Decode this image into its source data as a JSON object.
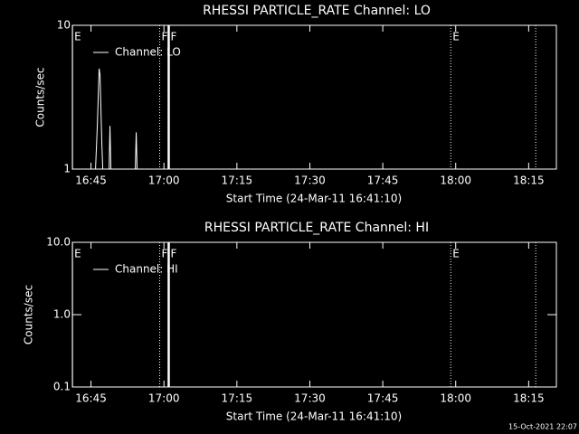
{
  "chart_data": [
    {
      "type": "line",
      "title": "RHESSI PARTICLE_RATE Channel: LO",
      "x_label": "Start Time (24-Mar-11 16:41:10)",
      "y_label": "Counts/sec",
      "log_y": true,
      "xlim": [
        41.17,
        140.7
      ],
      "ylim": [
        1,
        10
      ],
      "xticks": [
        {
          "value": 45,
          "label": "16:45"
        },
        {
          "value": 60,
          "label": "17:00"
        },
        {
          "value": 75,
          "label": "17:15"
        },
        {
          "value": 90,
          "label": "17:30"
        },
        {
          "value": 105,
          "label": "17:45"
        },
        {
          "value": 120,
          "label": "18:00"
        },
        {
          "value": 135,
          "label": "18:15"
        }
      ],
      "yticks": [
        1,
        10
      ],
      "x": [
        45.93,
        46.3,
        46.67,
        46.86,
        47.23,
        47.42,
        48.72,
        48.9,
        49.09,
        54.11,
        54.3,
        54.48
      ],
      "series": [
        {
          "name": "Channel: LO",
          "color": "#ffffff",
          "values": [
            1,
            2,
            5,
            4.5,
            1.5,
            1,
            1,
            2,
            1,
            1,
            1.8,
            1
          ]
        }
      ],
      "markers": [
        {
          "x": 41.2,
          "label": "E",
          "style": "solid"
        },
        {
          "x": 59.13,
          "label": "F",
          "style": "dotted"
        },
        {
          "x": 60.98,
          "label": "F",
          "style": "thick"
        },
        {
          "x": 118.98,
          "label": "E",
          "style": "dotted"
        },
        {
          "x": 136.45,
          "style": "dotted"
        }
      ]
    },
    {
      "type": "line",
      "title": "RHESSI PARTICLE_RATE Channel: HI",
      "x_label": "Start Time (24-Mar-11 16:41:10)",
      "y_label": "Counts/sec",
      "log_y": true,
      "xlim": [
        41.17,
        140.7
      ],
      "ylim": [
        0.1,
        10
      ],
      "xticks": [
        {
          "value": 45,
          "label": "16:45"
        },
        {
          "value": 60,
          "label": "17:00"
        },
        {
          "value": 75,
          "label": "17:15"
        },
        {
          "value": 90,
          "label": "17:30"
        },
        {
          "value": 105,
          "label": "17:45"
        },
        {
          "value": 120,
          "label": "18:00"
        },
        {
          "value": 135,
          "label": "18:15"
        }
      ],
      "yticks": [
        {
          "value": 0.1,
          "label": "0.1"
        },
        {
          "value": 1,
          "label": "1.0"
        },
        {
          "value": 10,
          "label": "10.0"
        }
      ],
      "x": [],
      "series": [
        {
          "name": "Channel: HI",
          "color": "#ffffff",
          "values": []
        }
      ],
      "markers": [
        {
          "x": 41.2,
          "label": "E",
          "style": "solid"
        },
        {
          "x": 59.13,
          "label": "F",
          "style": "dotted"
        },
        {
          "x": 60.98,
          "label": "F",
          "style": "thick"
        },
        {
          "x": 118.98,
          "label": "E",
          "style": "dotted"
        },
        {
          "x": 136.45,
          "style": "dotted"
        }
      ]
    }
  ],
  "footer": "15-Oct-2021 22:07"
}
